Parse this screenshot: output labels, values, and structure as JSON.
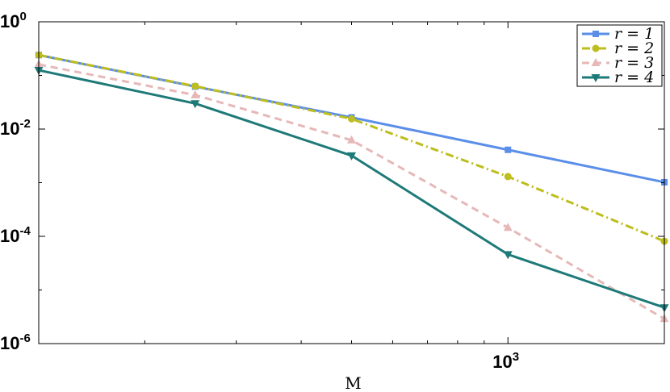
{
  "chart_data": {
    "type": "line",
    "title": "",
    "xlabel": "M",
    "ylabel": "",
    "xscale": "log",
    "yscale": "log",
    "xlim": [
      125,
      2000
    ],
    "ylim": [
      1e-06,
      1
    ],
    "grid": false,
    "legend_position": "top-right",
    "x_ticks": [
      {
        "base": "10",
        "exp": "3"
      }
    ],
    "y_ticks": [
      {
        "base": "10",
        "exp": "0"
      },
      {
        "base": "10",
        "exp": "-2"
      },
      {
        "base": "10",
        "exp": "-4"
      },
      {
        "base": "10",
        "exp": "-6"
      }
    ],
    "x": [
      125,
      250,
      500,
      1000,
      2000
    ],
    "series": [
      {
        "name": "r = 1",
        "color": "#5a8ee8",
        "dash": "solid",
        "marker": "square",
        "values": [
          0.24,
          0.062,
          0.0165,
          0.0041,
          0.00102
        ]
      },
      {
        "name": "r = 2",
        "color": "#bdbd1e",
        "dash": "dashdot",
        "marker": "circle",
        "values": [
          0.24,
          0.063,
          0.0155,
          0.0013,
          8.1e-05
        ]
      },
      {
        "name": "r = 3",
        "color": "#e6b8b8",
        "dash": "dashed",
        "marker": "triangle-up",
        "values": [
          0.16,
          0.043,
          0.0062,
          0.000145,
          2.9e-06
        ]
      },
      {
        "name": "r = 4",
        "color": "#1e7a78",
        "dash": "solid",
        "marker": "triangle-down",
        "values": [
          0.125,
          0.03,
          0.0032,
          4.6e-05,
          4.7e-06
        ]
      }
    ]
  }
}
